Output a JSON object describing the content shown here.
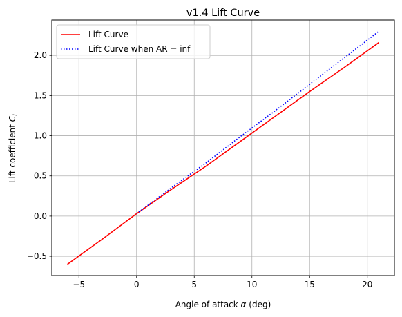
{
  "chart_data": {
    "type": "line",
    "title": "v1.4 Lift Curve",
    "xlabel_text": "Angle of attack ",
    "xlabel_symbol": "α",
    "xlabel_unit": " (deg)",
    "ylabel_text": "Lift coefficient ",
    "ylabel_symbol": "C",
    "ylabel_subscript": "L",
    "xlim": [
      -7.35,
      22.35
    ],
    "ylim": [
      -0.74,
      2.44
    ],
    "xticks": [
      -5,
      0,
      5,
      10,
      15,
      20
    ],
    "xtick_labels": [
      "−5",
      "0",
      "5",
      "10",
      "15",
      "20"
    ],
    "yticks": [
      -0.5,
      0.0,
      0.5,
      1.0,
      1.5,
      2.0
    ],
    "ytick_labels": [
      "−0.5",
      "0.0",
      "0.5",
      "1.0",
      "1.5",
      "2.0"
    ],
    "grid": true,
    "legend_position": "top-left",
    "series": [
      {
        "name": "Lift Curve",
        "color": "#ff0000",
        "style": "solid",
        "x": [
          -6,
          -3,
          0,
          3,
          6,
          9,
          12,
          15,
          18,
          21
        ],
        "y": [
          -0.6,
          -0.29,
          0.03,
          0.33,
          0.62,
          0.93,
          1.24,
          1.55,
          1.85,
          2.16
        ]
      },
      {
        "name": "Lift Curve when AR = inf",
        "color": "#0000ff",
        "style": "dotted",
        "x": [
          0,
          3,
          6,
          9,
          12,
          15,
          18,
          21
        ],
        "y": [
          0.03,
          0.35,
          0.66,
          0.99,
          1.31,
          1.64,
          1.97,
          2.3
        ]
      }
    ]
  }
}
